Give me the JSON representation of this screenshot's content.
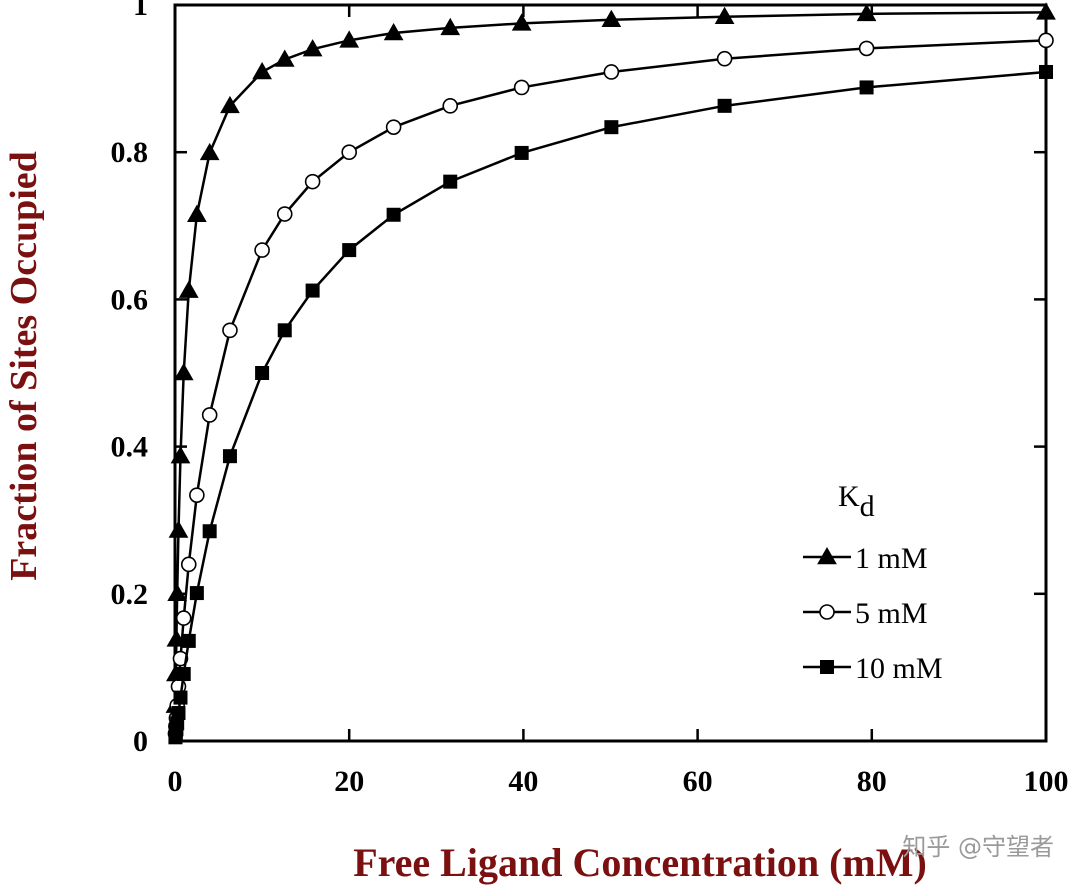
{
  "chart_data": {
    "type": "line",
    "xlabel": "Free Ligand Concentration (mM)",
    "ylabel": "Fraction of Sites Occupied",
    "xlim": [
      0,
      100
    ],
    "ylim": [
      0,
      1
    ],
    "x_ticks": [
      "0",
      "20",
      "40",
      "60",
      "80",
      "100"
    ],
    "y_ticks": [
      "0",
      "0.2",
      "0.4",
      "0.6",
      "0.8",
      "1"
    ],
    "legend_title": "K",
    "legend_title_sub": "d",
    "legend_position": "right",
    "grid": false,
    "x": [
      0.05,
      0.1,
      0.16,
      0.25,
      0.4,
      0.63,
      1.0,
      1.58,
      2.51,
      3.98,
      6.31,
      10,
      12.6,
      15.8,
      20,
      25.1,
      31.6,
      39.8,
      50.1,
      63.1,
      79.4,
      100
    ],
    "series": [
      {
        "name": "1 mM",
        "marker": "triangle",
        "color": "#000000",
        "values": [
          0.048,
          0.091,
          0.138,
          0.2,
          0.286,
          0.387,
          0.5,
          0.612,
          0.715,
          0.799,
          0.863,
          0.909,
          0.926,
          0.94,
          0.952,
          0.962,
          0.969,
          0.975,
          0.98,
          0.984,
          0.988,
          0.99
        ]
      },
      {
        "name": "5 mM",
        "marker": "open-circle",
        "color": "#000000",
        "values": [
          0.01,
          0.02,
          0.031,
          0.048,
          0.074,
          0.112,
          0.167,
          0.24,
          0.334,
          0.443,
          0.558,
          0.667,
          0.716,
          0.76,
          0.8,
          0.834,
          0.863,
          0.888,
          0.909,
          0.927,
          0.941,
          0.952
        ]
      },
      {
        "name": "10 mM",
        "marker": "filled-square",
        "color": "#000000",
        "values": [
          0.005,
          0.01,
          0.016,
          0.024,
          0.038,
          0.059,
          0.091,
          0.136,
          0.201,
          0.285,
          0.387,
          0.5,
          0.558,
          0.612,
          0.667,
          0.715,
          0.76,
          0.799,
          0.834,
          0.863,
          0.888,
          0.909
        ]
      }
    ]
  },
  "watermark": "知乎 @守望者"
}
